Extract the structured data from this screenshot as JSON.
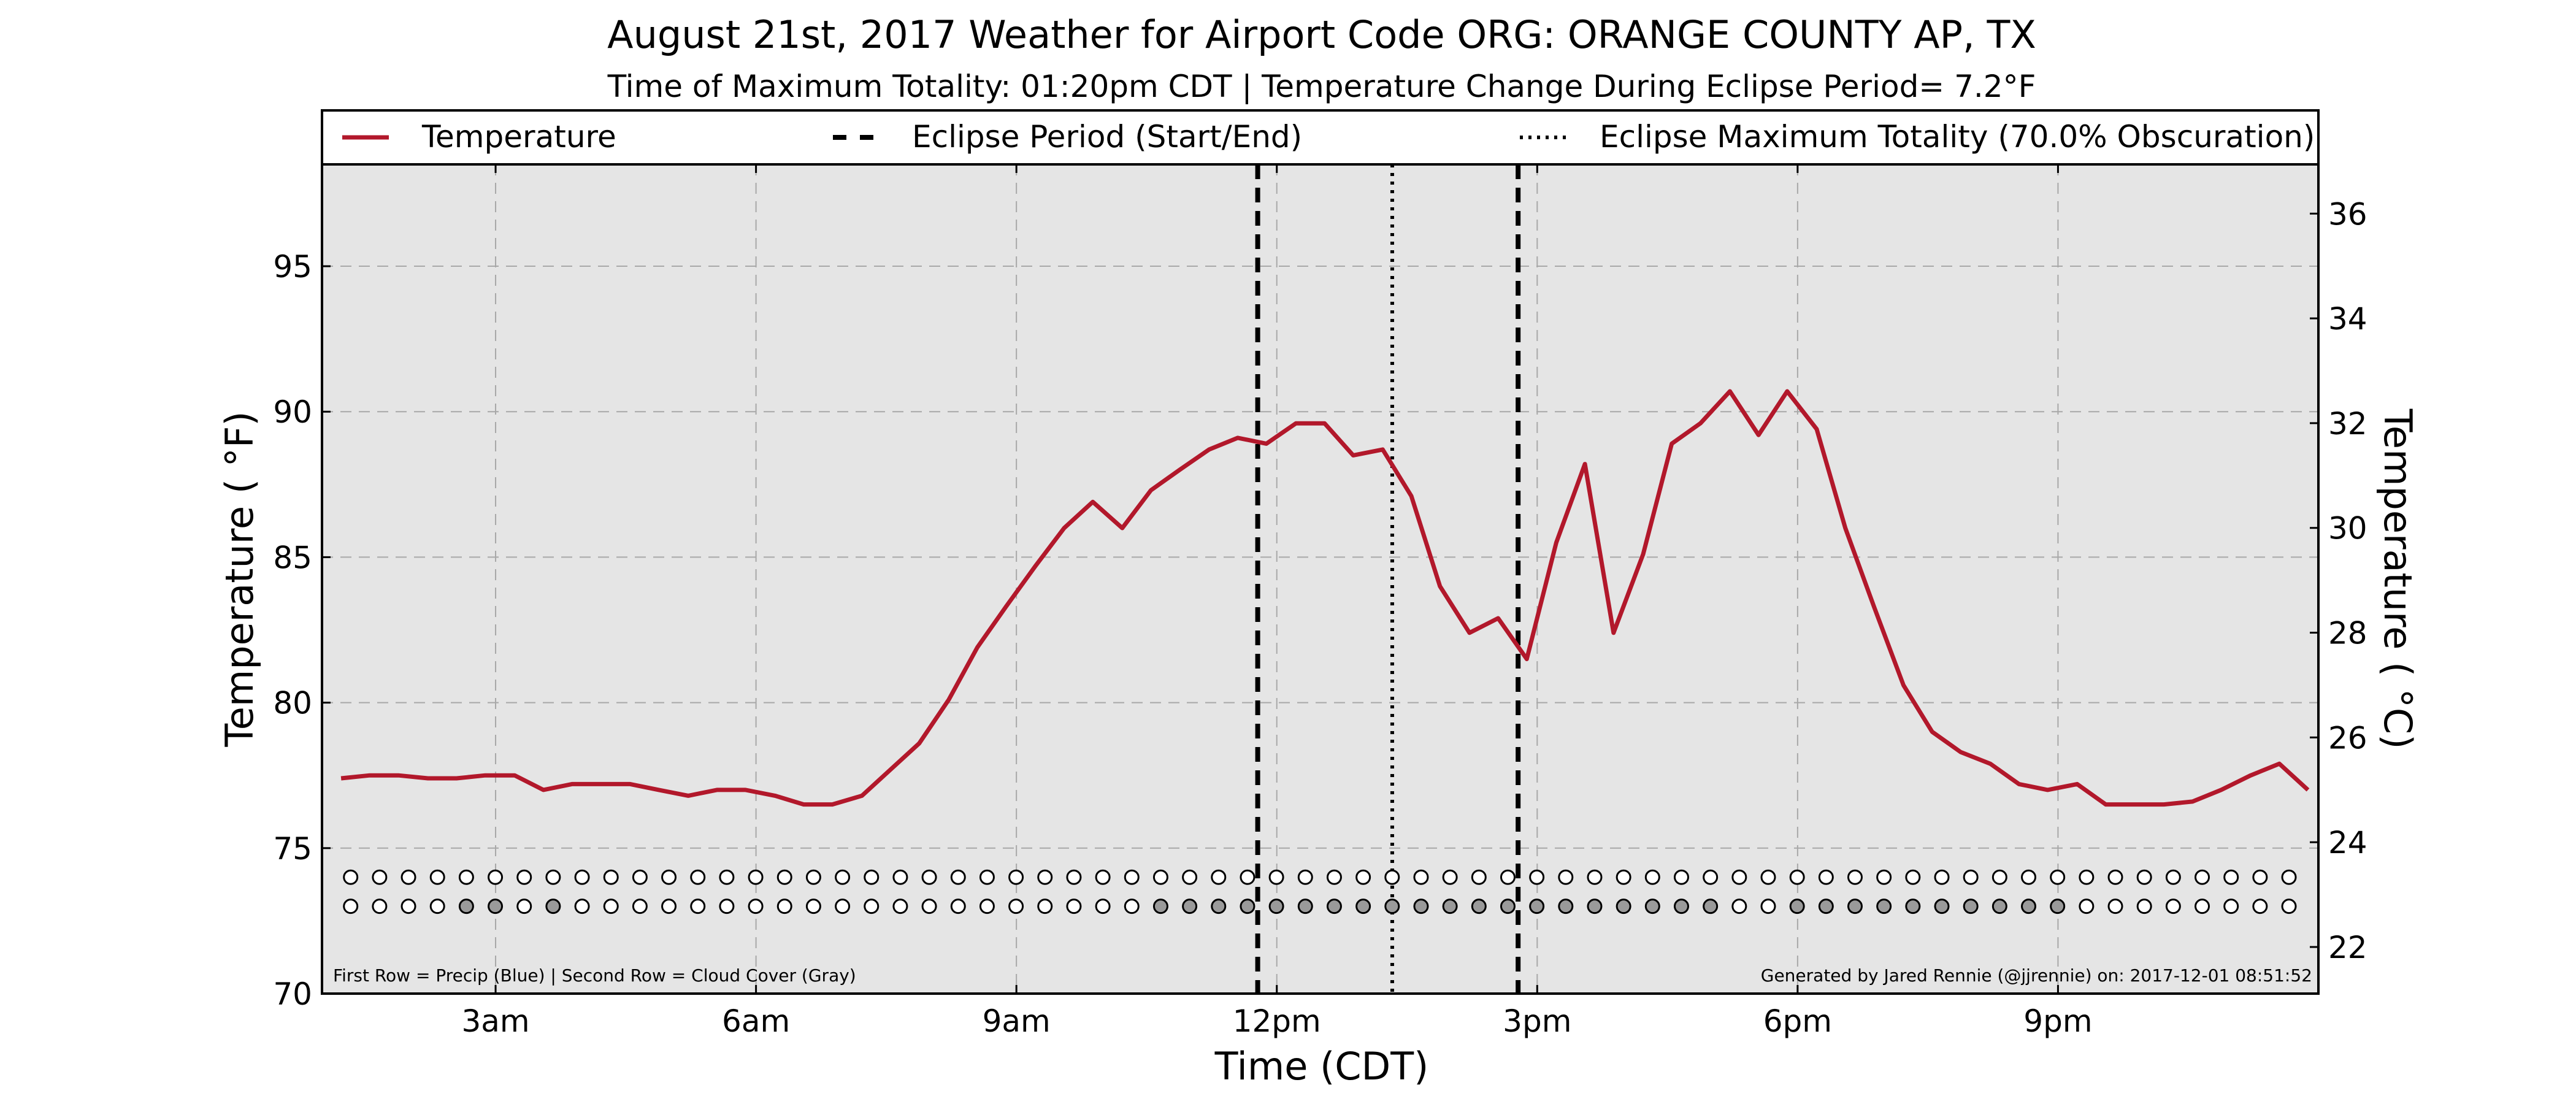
{
  "chart_data": {
    "type": "line",
    "title": "August 21st, 2017 Weather for Airport Code ORG: ORANGE COUNTY AP, TX",
    "subtitle": "Time of Maximum Totality: 01:20pm CDT | Temperature Change During Eclipse Period= 7.2",
    "subtitle_unit": "°F",
    "xlabel": "Time (CDT)",
    "ylabel": "Temperature ( °F)",
    "ylabel_right": "Temperature ( °C)",
    "xlim": [
      1.0,
      24.0
    ],
    "ylim": [
      70,
      98.5
    ],
    "ylim_right_c": [
      21.11,
      36.94
    ],
    "x_ticks": [
      {
        "x": 3,
        "label": "3am"
      },
      {
        "x": 6,
        "label": "6am"
      },
      {
        "x": 9,
        "label": "9am"
      },
      {
        "x": 12,
        "label": "12pm"
      },
      {
        "x": 15,
        "label": "3pm"
      },
      {
        "x": 18,
        "label": "6pm"
      },
      {
        "x": 21,
        "label": "9pm"
      }
    ],
    "y_ticks_left": [
      70,
      75,
      80,
      85,
      90,
      95
    ],
    "y_ticks_right": [
      22,
      24,
      26,
      28,
      30,
      32,
      34,
      36
    ],
    "grid": true,
    "legend_position": "top",
    "legend": [
      {
        "label": "Temperature",
        "style": "solid",
        "color": "#b2182b"
      },
      {
        "label": "Eclipse Period (Start/End)",
        "style": "dashed",
        "color": "#000000"
      },
      {
        "label": "Eclipse Maximum Totality (70.0% Obscuration)",
        "style": "dotted",
        "color": "#000000"
      }
    ],
    "series": [
      {
        "name": "Temperature",
        "color": "#b2182b",
        "x": [
          1.22,
          1.55,
          1.88,
          2.22,
          2.55,
          2.88,
          3.22,
          3.55,
          3.88,
          4.22,
          4.55,
          4.88,
          5.22,
          5.55,
          5.88,
          6.22,
          6.55,
          6.88,
          7.22,
          7.55,
          7.88,
          8.22,
          8.55,
          8.88,
          9.22,
          9.55,
          9.88,
          10.22,
          10.55,
          10.88,
          11.22,
          11.55,
          11.88,
          12.22,
          12.55,
          12.88,
          13.22,
          13.55,
          13.88,
          14.22,
          14.55,
          14.88,
          15.22,
          15.55,
          15.88,
          16.22,
          16.55,
          16.88,
          17.22,
          17.55,
          17.88,
          18.22,
          18.55,
          18.88,
          19.22,
          19.55,
          19.88,
          20.22,
          20.55,
          20.88,
          21.22,
          21.55,
          21.88,
          22.22,
          22.55,
          22.88,
          23.22,
          23.55,
          23.88
        ],
        "y": [
          77.4,
          77.5,
          77.5,
          77.4,
          77.4,
          77.5,
          77.5,
          77.0,
          77.2,
          77.2,
          77.2,
          77.0,
          76.8,
          77.0,
          77.0,
          76.8,
          76.5,
          76.5,
          76.8,
          77.7,
          78.6,
          80.1,
          81.9,
          83.3,
          84.7,
          86.0,
          86.9,
          86.0,
          87.3,
          88.0,
          88.7,
          89.1,
          88.9,
          89.6,
          89.6,
          88.5,
          88.7,
          87.1,
          84.0,
          82.4,
          82.9,
          81.5,
          85.5,
          88.2,
          82.4,
          85.1,
          88.9,
          89.6,
          90.7,
          89.2,
          90.7,
          89.4,
          86.0,
          83.3,
          80.6,
          79.0,
          78.3,
          77.9,
          77.2,
          77.0,
          77.2,
          76.5,
          76.5,
          76.5,
          76.6,
          77.0,
          77.5,
          77.9,
          77.0
        ]
      }
    ],
    "eclipse_start_x": 11.78,
    "eclipse_max_x": 13.33,
    "eclipse_end_x": 14.78,
    "marker_rows": {
      "precip_y": 74.0,
      "cloud_y": 73.0,
      "x_start": 1.33,
      "x_step": 0.3333,
      "count": 68,
      "precip_filled": [],
      "cloud_filled": [
        4,
        5,
        7,
        28,
        29,
        30,
        31,
        32,
        33,
        34,
        35,
        36,
        37,
        38,
        39,
        40,
        41,
        42,
        43,
        44,
        45,
        46,
        47,
        50,
        51,
        52,
        53,
        54,
        55,
        56,
        57,
        58,
        59
      ]
    },
    "footnote_left": "First Row = Precip (Blue) | Second Row = Cloud Cover (Gray)",
    "footnote_right": "Generated by Jared Rennie (@jjrennie) on: 2017-12-01 08:51:52"
  }
}
